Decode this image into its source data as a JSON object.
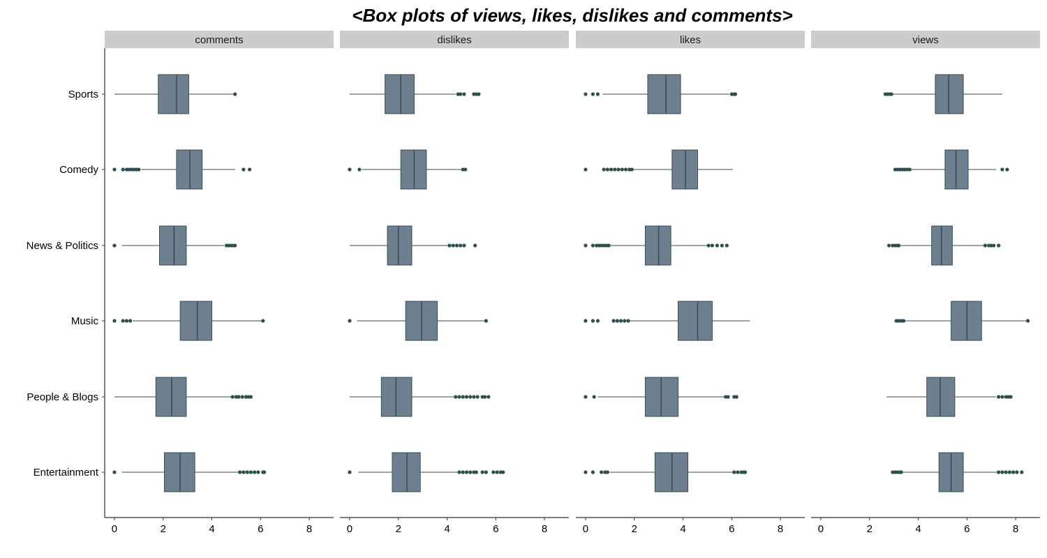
{
  "chart_data": {
    "type": "boxplot",
    "title": "<Box plots of views, likes, dislikes and comments>",
    "categories": [
      "Sports",
      "Comedy",
      "News & Politics",
      "Music",
      "People & Blogs",
      "Entertainment"
    ],
    "x_ticks": [
      0,
      2,
      4,
      6,
      8
    ],
    "xlim": [
      -0.4,
      9.0
    ],
    "colors": {
      "box_fill": "#6e7f8f",
      "line": "#2f4f4f",
      "strip": "#cccccc"
    },
    "panels": [
      {
        "name": "comments",
        "boxes": [
          {
            "category": "Sports",
            "whisker_low": 0.0,
            "q1": 1.8,
            "median": 2.55,
            "q3": 3.05,
            "whisker_high": 4.9,
            "outliers": [
              4.95
            ]
          },
          {
            "category": "Comedy",
            "whisker_low": 1.1,
            "q1": 2.55,
            "median": 3.1,
            "q3": 3.6,
            "whisker_high": 4.95,
            "outliers": [
              0.0,
              0.35,
              0.5,
              0.6,
              0.7,
              0.8,
              0.9,
              1.0,
              5.3,
              5.55
            ]
          },
          {
            "category": "News & Politics",
            "whisker_low": 0.3,
            "q1": 1.85,
            "median": 2.45,
            "q3": 2.95,
            "whisker_high": 4.5,
            "outliers": [
              0.0,
              4.6,
              4.7,
              4.8,
              4.9,
              4.95
            ]
          },
          {
            "category": "Music",
            "whisker_low": 0.75,
            "q1": 2.7,
            "median": 3.4,
            "q3": 4.0,
            "whisker_high": 6.05,
            "outliers": [
              0.0,
              0.35,
              0.5,
              0.65,
              6.1
            ]
          },
          {
            "category": "People & Blogs",
            "whisker_low": 0.0,
            "q1": 1.7,
            "median": 2.35,
            "q3": 2.95,
            "whisker_high": 4.8,
            "outliers": [
              4.85,
              5.0,
              5.1,
              5.25,
              5.4,
              5.5,
              5.6
            ]
          },
          {
            "category": "Entertainment",
            "whisker_low": 0.3,
            "q1": 2.05,
            "median": 2.7,
            "q3": 3.3,
            "whisker_high": 5.1,
            "outliers": [
              0.0,
              5.15,
              5.3,
              5.45,
              5.6,
              5.75,
              5.9,
              6.1,
              6.15
            ]
          }
        ]
      },
      {
        "name": "dislikes",
        "boxes": [
          {
            "category": "Sports",
            "whisker_low": 0.0,
            "q1": 1.45,
            "median": 2.1,
            "q3": 2.65,
            "whisker_high": 4.35,
            "outliers": [
              4.45,
              4.55,
              4.7,
              5.1,
              5.2,
              5.3
            ]
          },
          {
            "category": "Comedy",
            "whisker_low": 0.5,
            "q1": 2.1,
            "median": 2.65,
            "q3": 3.15,
            "whisker_high": 4.6,
            "outliers": [
              0.0,
              0.4,
              4.65,
              4.75
            ]
          },
          {
            "category": "News & Politics",
            "whisker_low": 0.0,
            "q1": 1.55,
            "median": 2.0,
            "q3": 2.55,
            "whisker_high": 4.05,
            "outliers": [
              4.1,
              4.25,
              4.4,
              4.55,
              4.7,
              5.15
            ]
          },
          {
            "category": "Music",
            "whisker_low": 0.3,
            "q1": 2.3,
            "median": 2.95,
            "q3": 3.6,
            "whisker_high": 5.55,
            "outliers": [
              0.0,
              5.6
            ]
          },
          {
            "category": "People & Blogs",
            "whisker_low": 0.0,
            "q1": 1.3,
            "median": 1.9,
            "q3": 2.55,
            "whisker_high": 4.3,
            "outliers": [
              4.35,
              4.5,
              4.65,
              4.8,
              4.95,
              5.1,
              5.25,
              5.45,
              5.55,
              5.7
            ]
          },
          {
            "category": "Entertainment",
            "whisker_low": 0.35,
            "q1": 1.75,
            "median": 2.35,
            "q3": 2.9,
            "whisker_high": 4.45,
            "outliers": [
              0.0,
              4.5,
              4.65,
              4.8,
              4.95,
              5.1,
              5.2,
              5.45,
              5.6,
              5.9,
              6.05,
              6.2,
              6.3
            ]
          }
        ]
      },
      {
        "name": "likes",
        "boxes": [
          {
            "category": "Sports",
            "whisker_low": 0.7,
            "q1": 2.55,
            "median": 3.3,
            "q3": 3.9,
            "whisker_high": 5.9,
            "outliers": [
              0.0,
              0.3,
              0.5,
              6.0,
              6.1,
              6.15
            ]
          },
          {
            "category": "Comedy",
            "whisker_low": 1.95,
            "q1": 3.55,
            "median": 4.1,
            "q3": 4.6,
            "whisker_high": 6.05,
            "outliers": [
              0.0,
              0.75,
              0.9,
              1.05,
              1.2,
              1.35,
              1.5,
              1.65,
              1.8,
              1.9
            ]
          },
          {
            "category": "News & Politics",
            "whisker_low": 1.0,
            "q1": 2.45,
            "median": 3.0,
            "q3": 3.5,
            "whisker_high": 5.0,
            "outliers": [
              0.0,
              0.3,
              0.45,
              0.55,
              0.65,
              0.75,
              0.85,
              0.95,
              5.05,
              5.2,
              5.4,
              5.6,
              5.8
            ]
          },
          {
            "category": "Music",
            "whisker_low": 1.8,
            "q1": 3.8,
            "median": 4.6,
            "q3": 5.2,
            "whisker_high": 6.75,
            "outliers": [
              0.0,
              0.3,
              0.5,
              1.15,
              1.3,
              1.45,
              1.6,
              1.75
            ]
          },
          {
            "category": "People & Blogs",
            "whisker_low": 0.5,
            "q1": 2.45,
            "median": 3.1,
            "q3": 3.8,
            "whisker_high": 5.7,
            "outliers": [
              0.0,
              0.35,
              5.75,
              5.85,
              6.1,
              6.2
            ]
          },
          {
            "category": "Entertainment",
            "whisker_low": 1.0,
            "q1": 2.85,
            "median": 3.55,
            "q3": 4.2,
            "whisker_high": 6.05,
            "outliers": [
              0.0,
              0.3,
              0.65,
              0.8,
              0.9,
              6.1,
              6.25,
              6.4,
              6.5,
              6.55
            ]
          }
        ]
      },
      {
        "name": "views",
        "boxes": [
          {
            "category": "Sports",
            "whisker_low": 2.95,
            "q1": 4.7,
            "median": 5.25,
            "q3": 5.85,
            "whisker_high": 7.45,
            "outliers": [
              2.65,
              2.75,
              2.85,
              2.9
            ]
          },
          {
            "category": "Comedy",
            "whisker_low": 3.7,
            "q1": 5.1,
            "median": 5.55,
            "q3": 6.05,
            "whisker_high": 7.2,
            "outliers": [
              3.05,
              3.15,
              3.25,
              3.35,
              3.45,
              3.55,
              3.65,
              7.45,
              7.65
            ]
          },
          {
            "category": "News & Politics",
            "whisker_low": 3.25,
            "q1": 4.55,
            "median": 4.95,
            "q3": 5.4,
            "whisker_high": 6.7,
            "outliers": [
              2.8,
              2.95,
              3.05,
              3.15,
              3.2,
              6.75,
              6.9,
              7.0,
              7.1,
              7.3
            ]
          },
          {
            "category": "Music",
            "whisker_low": 3.45,
            "q1": 5.35,
            "median": 6.0,
            "q3": 6.6,
            "whisker_high": 8.45,
            "outliers": [
              3.1,
              3.2,
              3.3,
              3.4,
              8.5
            ]
          },
          {
            "category": "People & Blogs",
            "whisker_low": 2.7,
            "q1": 4.35,
            "median": 4.9,
            "q3": 5.5,
            "whisker_high": 7.2,
            "outliers": [
              7.3,
              7.45,
              7.6,
              7.7,
              7.8
            ]
          },
          {
            "category": "Entertainment",
            "whisker_low": 3.35,
            "q1": 4.85,
            "median": 5.35,
            "q3": 5.85,
            "whisker_high": 7.25,
            "outliers": [
              2.95,
              3.05,
              3.15,
              3.25,
              3.3,
              7.3,
              7.45,
              7.6,
              7.75,
              7.9,
              8.05,
              8.25
            ]
          }
        ]
      }
    ]
  }
}
